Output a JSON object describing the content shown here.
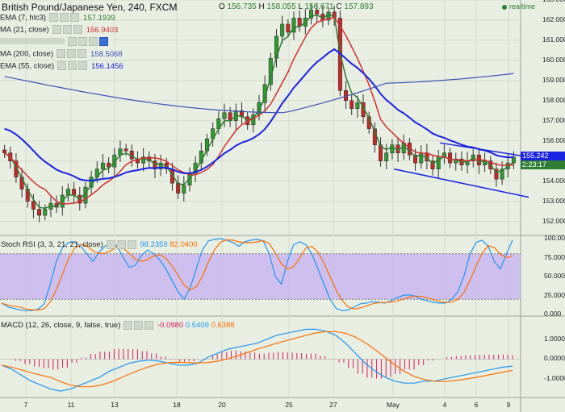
{
  "title": "British Pound/Japanese Yen, 240, FXCM",
  "ohlc": {
    "o_label": "O",
    "o": "156.735",
    "h_label": "H",
    "h": "158.055",
    "l_label": "L",
    "l": "156.671",
    "c_label": "C",
    "c": "157.893"
  },
  "realtime_label": "realtime",
  "legend": [
    {
      "label": "EMA (7, hlc3)",
      "value": "157.1939",
      "color": "#2e7d32"
    },
    {
      "label": "MA (21, close)",
      "value": "156.9403",
      "color": "#d32f2f"
    },
    {
      "label": "",
      "value": "",
      "color": "#888888"
    },
    {
      "label": "MA (200, close)",
      "value": "158.5068",
      "color": "#3f51b5"
    },
    {
      "label": "EMA (55, close)",
      "value": "156.1456",
      "color": "#1a23e0"
    }
  ],
  "price_tags": [
    {
      "text": "155.242",
      "color": "#1a23e0",
      "bg": "#1a23e0"
    },
    {
      "text": "2:23:17",
      "color": "#2e7d32",
      "bg": "#2e7d32"
    }
  ],
  "colors": {
    "up": "#2e9c2e",
    "down": "#c62828",
    "ema7": "#2e7d32",
    "ma21": "#d32f2f",
    "ma200": "#3f51b5",
    "ema55": "#1a23e0",
    "channel": "#1a23e0",
    "rsi_k": "#2196f3",
    "rsi_d": "#ff6f00",
    "macd": "#2196f3",
    "signal": "#ff6f00",
    "hist": "#d81b60",
    "rsi_band": "#c9b6f0"
  },
  "x_axis_labels": [
    "7",
    "11",
    "13",
    "18",
    "20",
    "25",
    "27",
    "May",
    "4",
    "6",
    "9"
  ],
  "price_axis_labels": [
    "163.000",
    "162.000",
    "161.000",
    "160.000",
    "159.000",
    "158.000",
    "157.000",
    "156.000",
    "155.000",
    "154.000",
    "153.000",
    "152.000"
  ],
  "rsi": {
    "title": "Stoch RSI (3, 3, 21, 21, close)",
    "k_value": "98.2359",
    "d_value": "82.0400",
    "axis_labels": [
      "100.000",
      "75.000",
      "50.000",
      "25.000",
      "0.000"
    ]
  },
  "macd": {
    "title": "MACD (12, 26, close, 9, false, true)",
    "hist_value": "-0.0980",
    "macd_value": "0.5409",
    "signal_value": "0.6388",
    "axis_labels": [
      "1.0000",
      "0.0000",
      "-1.0000"
    ]
  },
  "chart_data": {
    "type": "candlestick",
    "title": "British Pound/Japanese Yen, 240, FXCM",
    "x_ticks": [
      "7",
      "11",
      "13",
      "18",
      "20",
      "25",
      "27",
      "May",
      "4",
      "6",
      "9"
    ],
    "ylim": [
      151.3,
      163.0
    ],
    "close_path": [
      155.4,
      155.0,
      154.2,
      153.6,
      153.0,
      152.6,
      152.3,
      152.6,
      152.9,
      152.7,
      153.3,
      153.6,
      153.3,
      152.9,
      153.7,
      154.2,
      154.6,
      154.9,
      154.7,
      155.3,
      155.6,
      155.5,
      155.1,
      154.9,
      155.2,
      155.0,
      154.6,
      154.9,
      154.6,
      153.9,
      153.4,
      153.8,
      154.4,
      154.9,
      155.5,
      156.1,
      156.6,
      157.1,
      157.4,
      157.0,
      157.5,
      157.2,
      156.8,
      157.3,
      157.9,
      158.8,
      160.1,
      161.2,
      161.8,
      161.4,
      162.1,
      161.7,
      162.1,
      162.5,
      162.3,
      162.0,
      162.4,
      162.1,
      158.5,
      158.0,
      157.6,
      157.9,
      157.2,
      156.6,
      155.8,
      155.0,
      155.4,
      155.8,
      155.4,
      155.9,
      155.3,
      154.9,
      155.4,
      155.0,
      154.6,
      155.2,
      155.4,
      154.9,
      155.1,
      154.8,
      155.0,
      155.3,
      154.8,
      155.0,
      154.6,
      154.1,
      154.6,
      154.9,
      155.2
    ],
    "channel": {
      "upper": [
        [
          545,
          155.9
        ],
        [
          655,
          155.2
        ]
      ],
      "lower": [
        [
          488,
          154.6
        ],
        [
          655,
          153.2
        ]
      ]
    },
    "series": [
      {
        "name": "EMA (7, hlc3)",
        "last": 157.1939
      },
      {
        "name": "MA (21, close)",
        "last": 156.9403
      },
      {
        "name": "MA (200, close)",
        "last": 158.5068
      },
      {
        "name": "EMA (55, close)",
        "last": 156.1456
      }
    ]
  }
}
